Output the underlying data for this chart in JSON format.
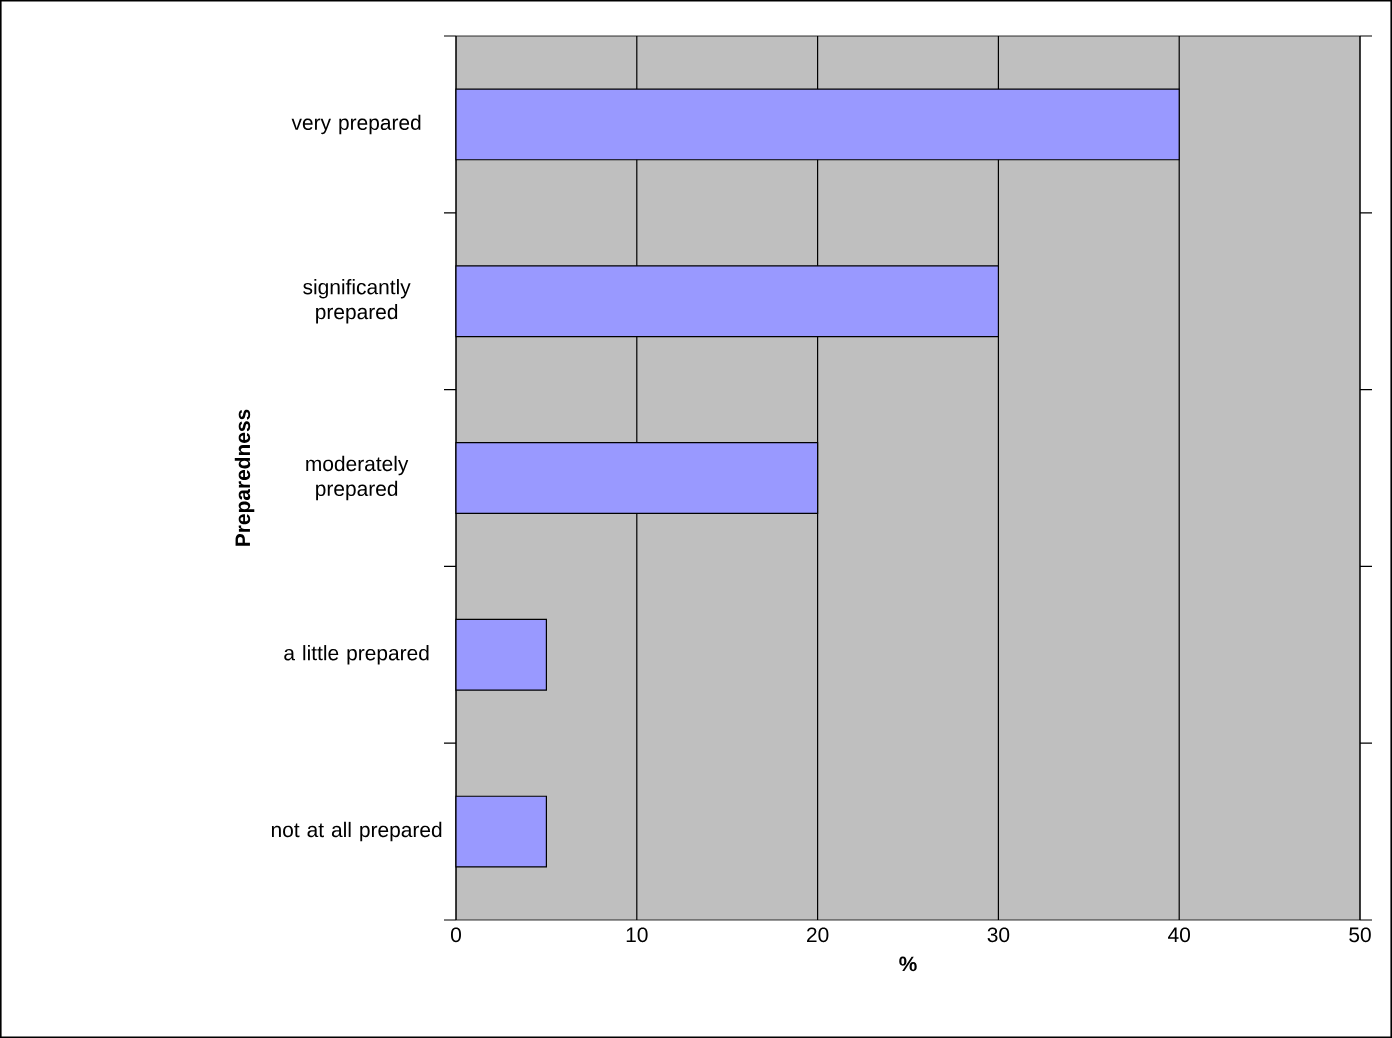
{
  "chart_data": {
    "type": "bar",
    "orientation": "horizontal",
    "xlabel": "%",
    "ylabel": "Preparedness",
    "categories": [
      "very prepared",
      "significantly prepared",
      "moderately prepared",
      "a little prepared",
      "not at all prepared"
    ],
    "values": [
      40,
      30,
      20,
      5,
      5
    ],
    "color": "#9999ff",
    "xlim": [
      0,
      50
    ],
    "xticks": [
      0,
      10,
      20,
      30,
      40,
      50
    ],
    "grid": "x"
  }
}
